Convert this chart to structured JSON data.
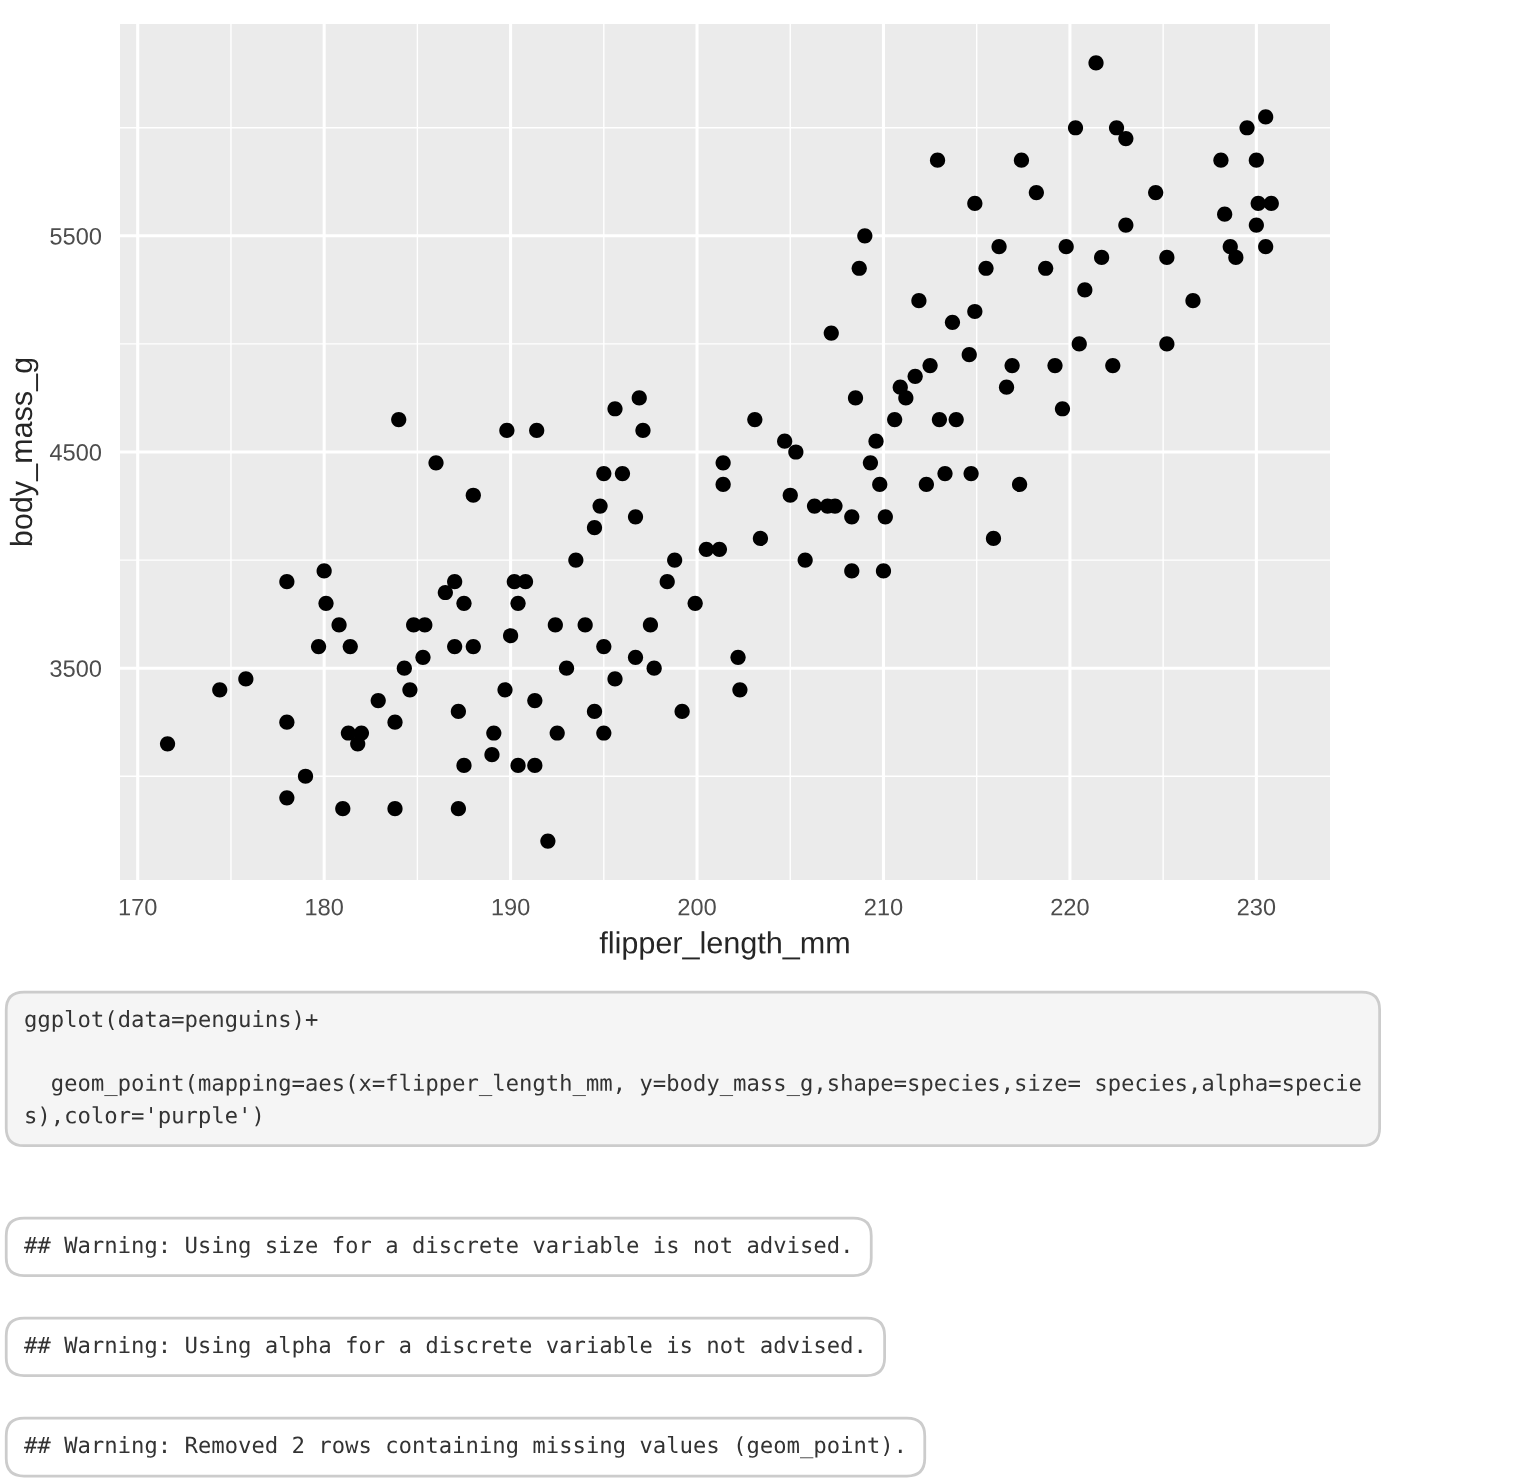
{
  "chart_data": {
    "type": "scatter",
    "xlabel": "flipper_length_mm",
    "ylabel": "body_mass_g",
    "xlim": [
      169.05,
      233.95
    ],
    "ylim": [
      2520,
      6480
    ],
    "xticks": [
      170,
      180,
      190,
      200,
      210,
      220,
      230
    ],
    "yticks": [
      3500,
      4500,
      5500
    ],
    "grid": true,
    "marker": "circle",
    "color": "#000000",
    "x": [
      171.6,
      174.4,
      175.8,
      178,
      178,
      178,
      179,
      181,
      183.8,
      184,
      186,
      188,
      189.8,
      191.4,
      180,
      180.1,
      180.8,
      181.4,
      179.7,
      181.3,
      181.8,
      182.9,
      182,
      183.8,
      184.6,
      184.3,
      184.8,
      185.3,
      185.4,
      186.5,
      187,
      187.5,
      188,
      187,
      187.2,
      187.5,
      187.2,
      189,
      189.1,
      189.7,
      190,
      190.4,
      190.2,
      190.8,
      190.4,
      191.3,
      192,
      192.5,
      191.3,
      192.4,
      193,
      193.5,
      194.5,
      194.8,
      195,
      196,
      196.7,
      197.1,
      196.9,
      195.6,
      194,
      195,
      194.5,
      195,
      195.6,
      196.7,
      197.7,
      197.5,
      198.4,
      198.8,
      199.9,
      199.2,
      201.2,
      201.4,
      201.4,
      202.2,
      202.3,
      200.5,
      203.1,
      203.4,
      204.7,
      205.3,
      205,
      206.3,
      207.2,
      207,
      205.8,
      207.4,
      208.3,
      208.3,
      208.5,
      208.7,
      209,
      209.3,
      209.6,
      209.8,
      210,
      210.1,
      210.6,
      211.2,
      211.7,
      211.9,
      212.3,
      212.5,
      212.9,
      213,
      213.9,
      213.3,
      214.6,
      214.9,
      215.5,
      214.7,
      214.9,
      215.9,
      216.2,
      216.9,
      217.3,
      217.4,
      218.2,
      218.7,
      219.2,
      219.6,
      219.8,
      220.3,
      221.4,
      221.7,
      222.3,
      222.5,
      223,
      223,
      224.6,
      225.2,
      225.2,
      226.6,
      228.1,
      228.3,
      228.6,
      228.9,
      229.5,
      230,
      230.1,
      230.5,
      230.8,
      230,
      230.5,
      220.8,
      220.5,
      216.6,
      213.7,
      210.9
    ],
    "values": [
      3150,
      3400,
      3450,
      3900,
      3250,
      2900,
      3000,
      2850,
      2850,
      4650,
      4450,
      4300,
      4600,
      4600,
      3950,
      3800,
      3700,
      3600,
      3600,
      3200,
      3150,
      3350,
      3200,
      3250,
      3400,
      3500,
      3700,
      3550,
      3700,
      3850,
      3900,
      3800,
      3600,
      3600,
      3300,
      3050,
      2850,
      3100,
      3200,
      3400,
      3650,
      3800,
      3900,
      3900,
      3050,
      3050,
      2700,
      3200,
      3350,
      3700,
      3500,
      4000,
      4150,
      4250,
      4400,
      4400,
      4200,
      4600,
      4750,
      4700,
      3700,
      3600,
      3300,
      3200,
      3450,
      3550,
      3500,
      3700,
      3900,
      4000,
      3800,
      3300,
      4050,
      4350,
      4450,
      3550,
      3400,
      4050,
      4650,
      4100,
      4550,
      4500,
      4300,
      4250,
      5050,
      4250,
      4000,
      4250,
      3950,
      4200,
      4750,
      5350,
      5500,
      4450,
      4550,
      4350,
      3950,
      4200,
      4650,
      4750,
      4850,
      5200,
      4350,
      4900,
      5850,
      4650,
      4650,
      4400,
      4950,
      5150,
      5350,
      4400,
      5650,
      4100,
      5450,
      4900,
      4350,
      5850,
      5700,
      5350,
      4900,
      4700,
      5450,
      6000,
      6300,
      5400,
      4900,
      6000,
      5950,
      5550,
      5700,
      5000,
      5400,
      5200,
      5850,
      5600,
      5450,
      5400,
      6000,
      5850,
      5650,
      6050,
      5650,
      5550,
      5450,
      5250,
      5000,
      4800,
      5100,
      4800
    ],
    "annotations": [
      "ggplot(data=penguins)+\n\n  geom_point(mapping=aes(x=flipper_length_mm, y=body_mass_g,shape=species,size= species,alpha=specie\ns),color='purple')",
      "## Warning: Using size for a discrete variable is not advised.",
      "## Warning: Using alpha for a discrete variable is not advised.",
      "## Warning: Removed 2 rows containing missing values (geom_point)."
    ]
  }
}
